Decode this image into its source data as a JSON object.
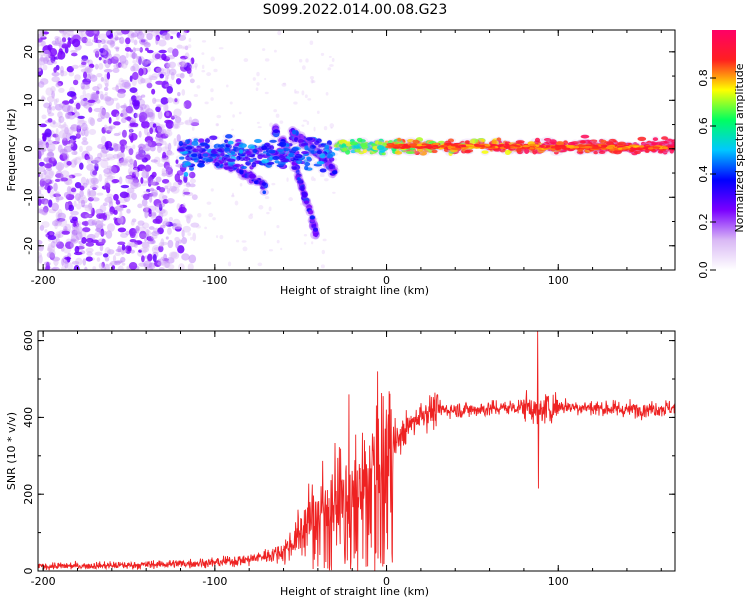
{
  "figure": {
    "title": "S099.2022.014.00.08.G23"
  },
  "chart_data": [
    {
      "type": "heatmap",
      "title": "S099.2022.014.00.08.G23",
      "xlabel": "Height of straight line (km)",
      "ylabel": "Frequency (Hz)",
      "xlim": [
        -203,
        168
      ],
      "ylim": [
        -25,
        24.5
      ],
      "x_ticks": [
        -200,
        -100,
        0,
        100
      ],
      "x_tick_labels": [
        "-200",
        "-100",
        "0",
        "100"
      ],
      "y_ticks": [
        -20,
        -10,
        0,
        10,
        20
      ],
      "y_tick_labels": [
        "-20",
        "-10",
        "0",
        "10",
        "20"
      ],
      "grid": false,
      "colormap": [
        "#ffffff",
        "#d9b8f5",
        "#7a00ff",
        "#0000ff",
        "#00c8ff",
        "#00ff60",
        "#ffff00",
        "#ff2020",
        "#ff0066"
      ],
      "colorbar": {
        "label": "Normalized spectral amplitude",
        "range": [
          0,
          1
        ],
        "ticks": [
          0.0,
          0.2,
          0.4,
          0.6,
          0.8
        ],
        "tick_labels": [
          "0.0",
          "0.2",
          "0.4",
          "0.6",
          "0.8"
        ]
      },
      "features": {
        "noise_region_x": [
          -203,
          -120
        ],
        "main_band": {
          "x": [
            -120,
            168
          ],
          "freq_start": 0,
          "amplitude_peak_x": [
            0,
            168
          ]
        },
        "descending_traces": [
          {
            "x": [
              -120,
              -70
            ],
            "freq": [
              0,
              -8
            ]
          },
          {
            "x": [
              -65,
              -40
            ],
            "freq": [
              4,
              -19
            ]
          },
          {
            "x": [
              -55,
              -30
            ],
            "freq": [
              3,
              -5
            ]
          }
        ]
      }
    },
    {
      "type": "line",
      "xlabel": "Height of straight line (km)",
      "ylabel": "SNR (10 * v/v)",
      "xlim": [
        -203,
        168
      ],
      "ylim": [
        0,
        625
      ],
      "x_ticks": [
        -200,
        -100,
        0,
        100
      ],
      "x_tick_labels": [
        "-200",
        "-100",
        "0",
        "100"
      ],
      "y_ticks": [
        0,
        200,
        400,
        600
      ],
      "y_tick_labels": [
        "0",
        "200",
        "400",
        "600"
      ],
      "grid": false,
      "line_color": "#ee2222",
      "profile_x": [
        -203,
        -150,
        -100,
        -80,
        -60,
        -50,
        -40,
        -30,
        -20,
        -10,
        0,
        10,
        20,
        30,
        50,
        70,
        85,
        88,
        90,
        100,
        120,
        140,
        168
      ],
      "profile_y": [
        12,
        15,
        22,
        30,
        50,
        100,
        160,
        180,
        200,
        250,
        310,
        360,
        410,
        420,
        420,
        425,
        430,
        400,
        420,
        430,
        425,
        420,
        425
      ],
      "spikes": [
        {
          "x": -22,
          "y": 460
        },
        {
          "x": -18,
          "y": 355
        },
        {
          "x": 88,
          "y": 625
        },
        {
          "x": 88.5,
          "y": 215
        }
      ]
    }
  ]
}
